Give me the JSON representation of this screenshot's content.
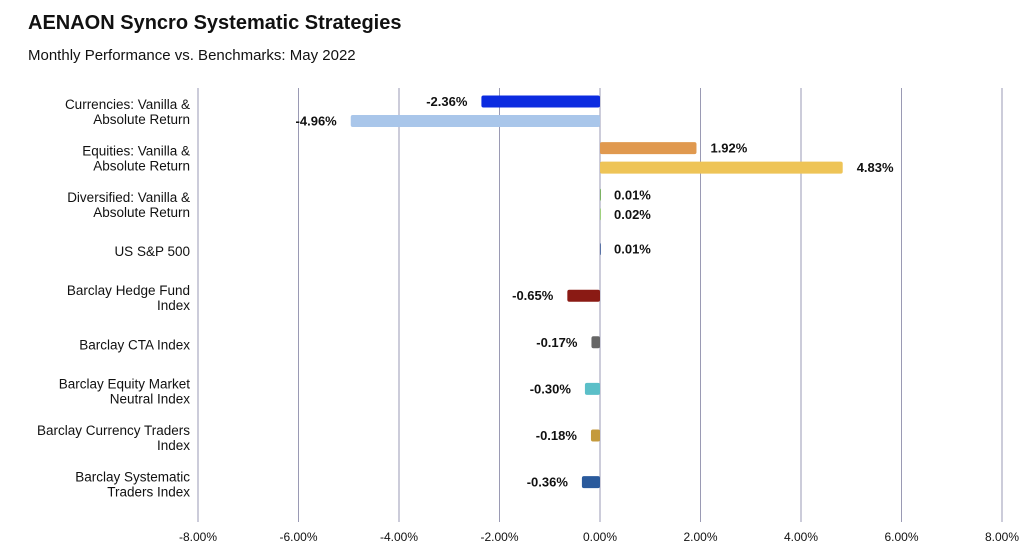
{
  "title": "AENAON Syncro Systematic Strategies",
  "subtitle": "Monthly Performance vs. Benchmarks: May 2022",
  "chart_data": {
    "type": "bar",
    "orientation": "horizontal",
    "title": "AENAON Syncro Systematic Strategies",
    "subtitle": "Monthly Performance vs. Benchmarks: May 2022",
    "xlim": [
      -8,
      8
    ],
    "grid": true,
    "x_ticks": [
      -8,
      -6,
      -4,
      -2,
      0,
      2,
      4,
      6,
      8
    ],
    "x_tick_labels": [
      "-8.00%",
      "-6.00%",
      "-4.00%",
      "-2.00%",
      "0.00%",
      "2.00%",
      "4.00%",
      "6.00%",
      "8.00%"
    ],
    "categories": [
      {
        "label_lines": [
          "Currencies: Vanilla &",
          "Absolute Return"
        ],
        "bars": [
          {
            "value": -2.36,
            "label": "-2.36%",
            "color": "#0b2be0"
          },
          {
            "value": -4.96,
            "label": "-4.96%",
            "color": "#a9c6ea"
          }
        ]
      },
      {
        "label_lines": [
          "Equities: Vanilla &",
          "Absolute Return"
        ],
        "bars": [
          {
            "value": 1.92,
            "label": "1.92%",
            "color": "#e0994f"
          },
          {
            "value": 4.83,
            "label": "4.83%",
            "color": "#eec457"
          }
        ]
      },
      {
        "label_lines": [
          "Diversified: Vanilla &",
          "Absolute Return"
        ],
        "bars": [
          {
            "value": 0.01,
            "label": "0.01%",
            "color": "#5a9e3c"
          },
          {
            "value": 0.02,
            "label": "0.02%",
            "color": "#9fd17e"
          }
        ]
      },
      {
        "label_lines": [
          "US S&P 500"
        ],
        "bars": [
          {
            "value": 0.01,
            "label": "0.01%",
            "color": "#2f4f8f"
          }
        ]
      },
      {
        "label_lines": [
          "Barclay Hedge Fund",
          "Index"
        ],
        "bars": [
          {
            "value": -0.65,
            "label": "-0.65%",
            "color": "#8a1a14"
          }
        ]
      },
      {
        "label_lines": [
          "Barclay CTA Index"
        ],
        "bars": [
          {
            "value": -0.17,
            "label": "-0.17%",
            "color": "#666666"
          }
        ]
      },
      {
        "label_lines": [
          "Barclay Equity Market",
          "Neutral Index"
        ],
        "bars": [
          {
            "value": -0.3,
            "label": "-0.30%",
            "color": "#5bbfc8"
          }
        ]
      },
      {
        "label_lines": [
          "Barclay Currency Traders",
          "Index"
        ],
        "bars": [
          {
            "value": -0.18,
            "label": "-0.18%",
            "color": "#c49a3c"
          }
        ]
      },
      {
        "label_lines": [
          "Barclay Systematic",
          "Traders Index"
        ],
        "bars": [
          {
            "value": -0.36,
            "label": "-0.36%",
            "color": "#2a5a9c"
          }
        ]
      }
    ]
  }
}
